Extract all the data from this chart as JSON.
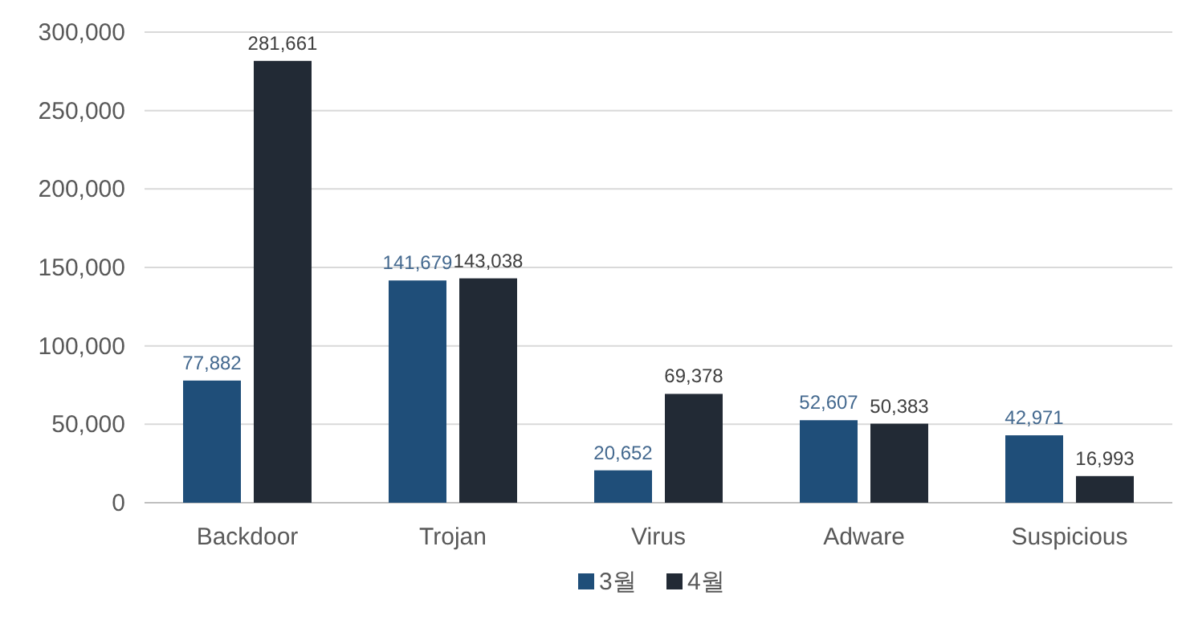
{
  "chart_data": {
    "type": "bar",
    "categories": [
      "Backdoor",
      "Trojan",
      "Virus",
      "Adware",
      "Suspicious"
    ],
    "series": [
      {
        "name": "3월",
        "color": "#1f4e79",
        "values": [
          77882,
          141679,
          20652,
          52607,
          42971
        ],
        "value_labels": [
          "77,882",
          "141,679",
          "20,652",
          "52,607",
          "42,971"
        ]
      },
      {
        "name": "4월",
        "color": "#222a35",
        "values": [
          281661,
          143038,
          69378,
          50383,
          16993
        ],
        "value_labels": [
          "281,661",
          "143,038",
          "69,378",
          "50,383",
          "16,993"
        ]
      }
    ],
    "ylim": [
      0,
      300000
    ],
    "yticks": [
      {
        "value": 0,
        "label": "0"
      },
      {
        "value": 50000,
        "label": "50,000"
      },
      {
        "value": 100000,
        "label": "100,000"
      },
      {
        "value": 150000,
        "label": "150,000"
      },
      {
        "value": 200000,
        "label": "200,000"
      },
      {
        "value": 250000,
        "label": "250,000"
      },
      {
        "value": 300000,
        "label": "300,000"
      }
    ],
    "grid": "y",
    "legend": "bottom"
  }
}
